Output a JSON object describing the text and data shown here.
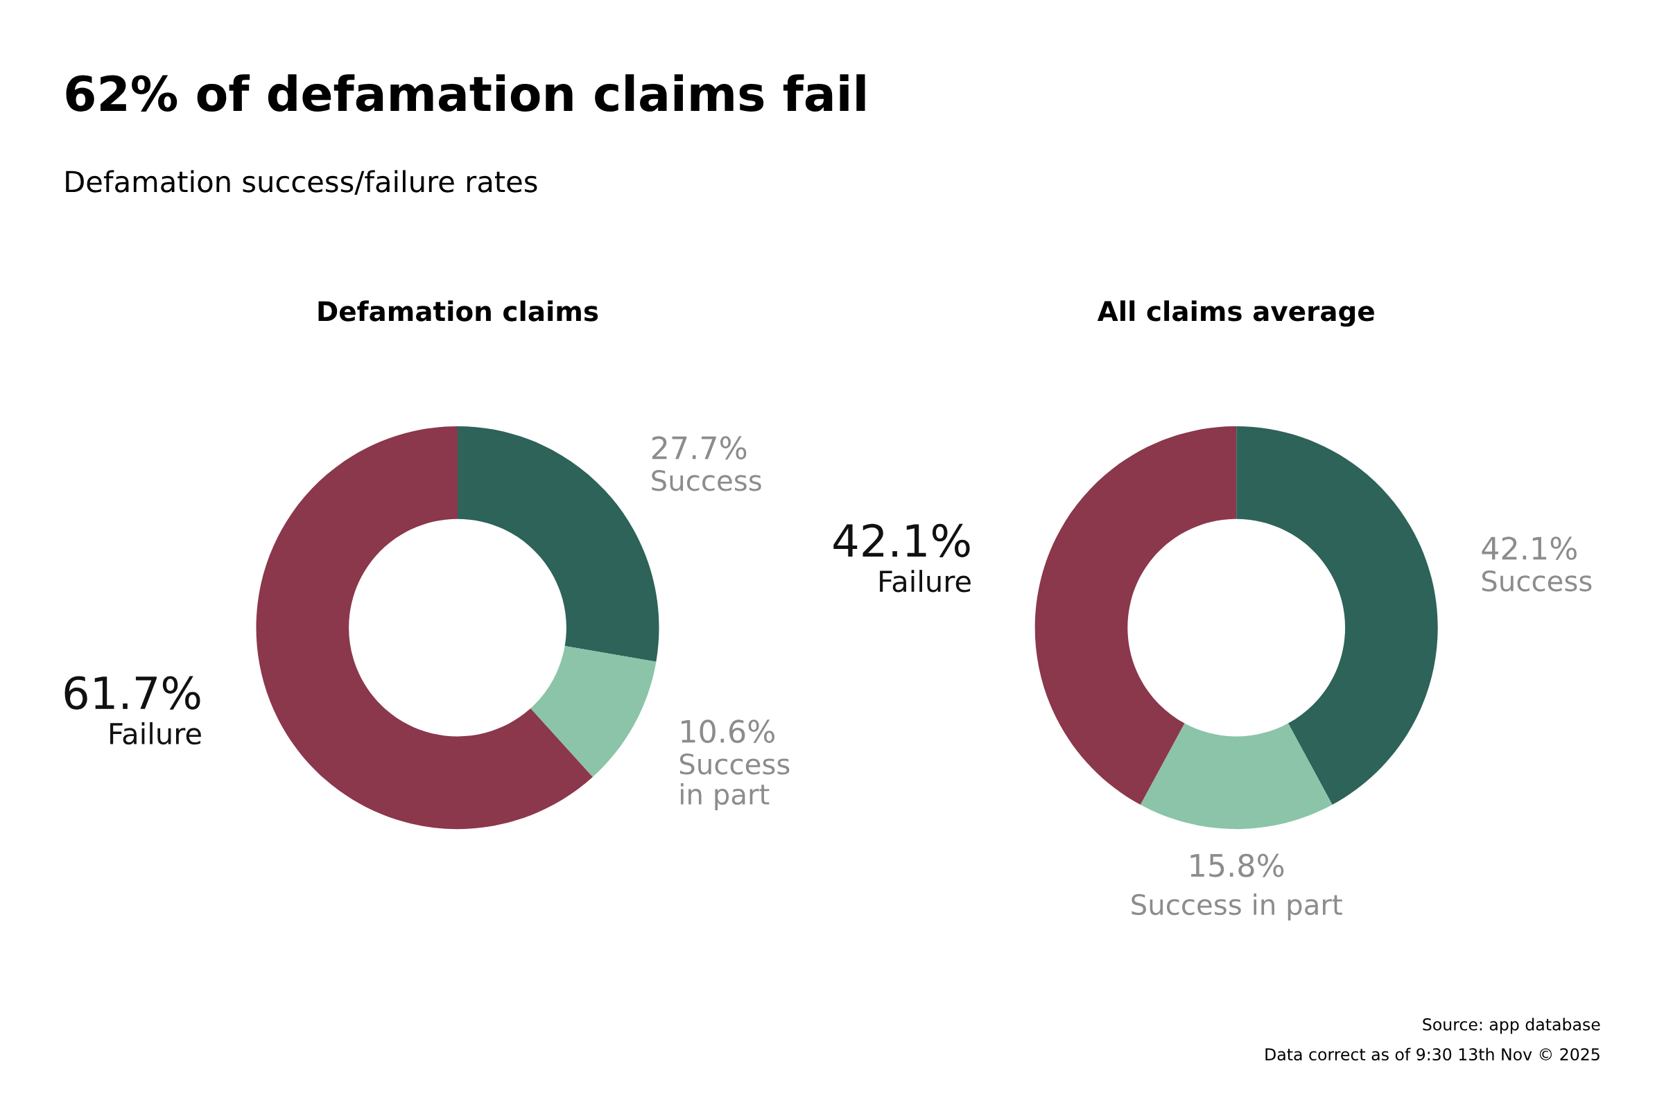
{
  "chart_data": [
    {
      "type": "other",
      "title": "62% of defamation claims fail",
      "subtitle": "Defamation success/failure rates",
      "annotations": [
        "Source: app database",
        "Data correct as of 9:30 13th Nov © 2025"
      ]
    },
    {
      "type": "donut",
      "title": "Defamation claims",
      "categories": [
        "Success",
        "Success in part",
        "Failure"
      ],
      "values": [
        27.7,
        10.6,
        61.7
      ],
      "colors": [
        "#2d6359",
        "#8bc4a8",
        "#8b374c"
      ],
      "value_labels": [
        "27.7%",
        "10.6%",
        "61.7%"
      ]
    },
    {
      "type": "donut",
      "title": "All claims average",
      "categories": [
        "Success",
        "Success in part",
        "Failure"
      ],
      "values": [
        42.1,
        15.8,
        42.1
      ],
      "colors": [
        "#2d6359",
        "#8bc4a8",
        "#8b374c"
      ],
      "value_labels": [
        "42.1%",
        "15.8%",
        "42.1%"
      ]
    }
  ]
}
